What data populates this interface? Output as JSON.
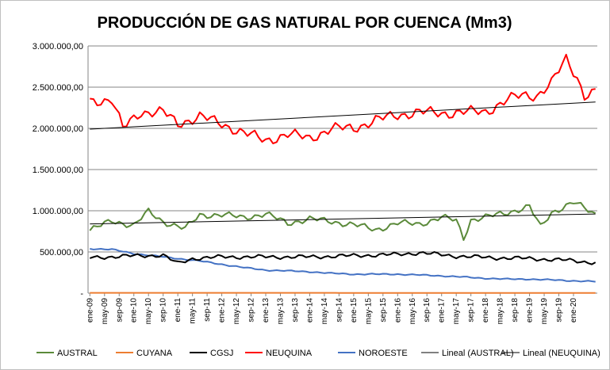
{
  "chart_data": {
    "type": "line",
    "title": "PRODUCCIÓN DE GAS NATURAL POR CUENCA (Mm3)",
    "xlabel": "",
    "ylabel": "",
    "ylim": [
      0,
      3000000
    ],
    "y_ticks": [
      {
        "value": 3000000,
        "label": "3.000.000,00"
      },
      {
        "value": 2500000,
        "label": "2.500.000,00"
      },
      {
        "value": 2000000,
        "label": "2.000.000,00"
      },
      {
        "value": 1500000,
        "label": "1.500.000,00"
      },
      {
        "value": 1000000,
        "label": "1.000.000,00"
      },
      {
        "value": 500000,
        "label": "500.000,00"
      },
      {
        "value": 0,
        "label": "-"
      }
    ],
    "n_months": 139,
    "x_tick_labels": [
      "ene-09",
      "may-09",
      "sep-09",
      "ene-10",
      "may-10",
      "sep-10",
      "ene-11",
      "may-11",
      "sep-11",
      "ene-12",
      "may-12",
      "sep-12",
      "ene-13",
      "may-13",
      "sep-13",
      "ene-14",
      "may-14",
      "sep-14",
      "ene-15",
      "may-15",
      "sep-15",
      "ene-16",
      "may-16",
      "sep-16",
      "ene-17",
      "may-17",
      "sep-17",
      "ene-18",
      "may-18",
      "sep-18",
      "ene-19",
      "may-19",
      "sep-19",
      "ene-20"
    ],
    "grid": true,
    "legend_position": "bottom",
    "series": [
      {
        "name": "AUSTRAL",
        "color": "#5b8a3a",
        "anchors": [
          [
            0,
            760000
          ],
          [
            6,
            880000
          ],
          [
            12,
            820000
          ],
          [
            16,
            990000
          ],
          [
            20,
            870000
          ],
          [
            26,
            780000
          ],
          [
            30,
            950000
          ],
          [
            36,
            950000
          ],
          [
            42,
            920000
          ],
          [
            48,
            960000
          ],
          [
            54,
            850000
          ],
          [
            60,
            900000
          ],
          [
            66,
            870000
          ],
          [
            72,
            830000
          ],
          [
            78,
            770000
          ],
          [
            84,
            850000
          ],
          [
            90,
            840000
          ],
          [
            96,
            920000
          ],
          [
            100,
            880000
          ],
          [
            102,
            670000
          ],
          [
            104,
            890000
          ],
          [
            108,
            920000
          ],
          [
            114,
            980000
          ],
          [
            120,
            1050000
          ],
          [
            123,
            800000
          ],
          [
            126,
            980000
          ],
          [
            132,
            1100000
          ],
          [
            138,
            960000
          ]
        ],
        "noise": 45000
      },
      {
        "name": "CUYANA",
        "color": "#ed7d31",
        "anchors": [
          [
            0,
            4000
          ],
          [
            138,
            2000
          ]
        ],
        "noise": 0
      },
      {
        "name": "CGSJ",
        "color": "#000000",
        "anchors": [
          [
            0,
            430000
          ],
          [
            10,
            450000
          ],
          [
            20,
            460000
          ],
          [
            24,
            360000
          ],
          [
            28,
            420000
          ],
          [
            36,
            440000
          ],
          [
            60,
            440000
          ],
          [
            84,
            470000
          ],
          [
            90,
            490000
          ],
          [
            100,
            450000
          ],
          [
            110,
            430000
          ],
          [
            120,
            420000
          ],
          [
            130,
            400000
          ],
          [
            138,
            370000
          ]
        ],
        "noise": 28000
      },
      {
        "name": "NEUQUINA",
        "color": "#ff0000",
        "anchors": [
          [
            0,
            2330000
          ],
          [
            6,
            2350000
          ],
          [
            9,
            2000000
          ],
          [
            14,
            2200000
          ],
          [
            20,
            2200000
          ],
          [
            24,
            2050000
          ],
          [
            30,
            2150000
          ],
          [
            36,
            2050000
          ],
          [
            42,
            1950000
          ],
          [
            48,
            1850000
          ],
          [
            54,
            1930000
          ],
          [
            60,
            1880000
          ],
          [
            66,
            2000000
          ],
          [
            72,
            2000000
          ],
          [
            78,
            2100000
          ],
          [
            84,
            2160000
          ],
          [
            90,
            2200000
          ],
          [
            96,
            2180000
          ],
          [
            102,
            2200000
          ],
          [
            108,
            2200000
          ],
          [
            114,
            2350000
          ],
          [
            118,
            2400000
          ],
          [
            122,
            2400000
          ],
          [
            126,
            2550000
          ],
          [
            130,
            2840000
          ],
          [
            133,
            2620000
          ],
          [
            135,
            2400000
          ],
          [
            138,
            2440000
          ]
        ],
        "noise": 75000
      },
      {
        "name": "NOROESTE",
        "color": "#4472c4",
        "anchors": [
          [
            0,
            540000
          ],
          [
            6,
            530000
          ],
          [
            12,
            480000
          ],
          [
            18,
            450000
          ],
          [
            24,
            420000
          ],
          [
            30,
            390000
          ],
          [
            36,
            350000
          ],
          [
            42,
            310000
          ],
          [
            48,
            280000
          ],
          [
            54,
            270000
          ],
          [
            60,
            260000
          ],
          [
            66,
            240000
          ],
          [
            72,
            230000
          ],
          [
            78,
            230000
          ],
          [
            84,
            230000
          ],
          [
            90,
            220000
          ],
          [
            96,
            210000
          ],
          [
            102,
            195000
          ],
          [
            108,
            180000
          ],
          [
            114,
            170000
          ],
          [
            120,
            170000
          ],
          [
            126,
            160000
          ],
          [
            132,
            150000
          ],
          [
            138,
            140000
          ]
        ],
        "noise": 9000
      }
    ],
    "trendlines": [
      {
        "name": "Lineal (AUSTRAL)",
        "color": "#000000",
        "start": 840000,
        "end": 960000
      },
      {
        "name": "Lineal (NEUQUINA)",
        "color": "#000000",
        "start": 1990000,
        "end": 2320000
      }
    ],
    "legend": [
      "AUSTRAL",
      "CUYANA",
      "CGSJ",
      "NEUQUINA",
      "NOROESTE",
      "Lineal (AUSTRAL)",
      "Lineal (NEUQUINA)"
    ]
  }
}
